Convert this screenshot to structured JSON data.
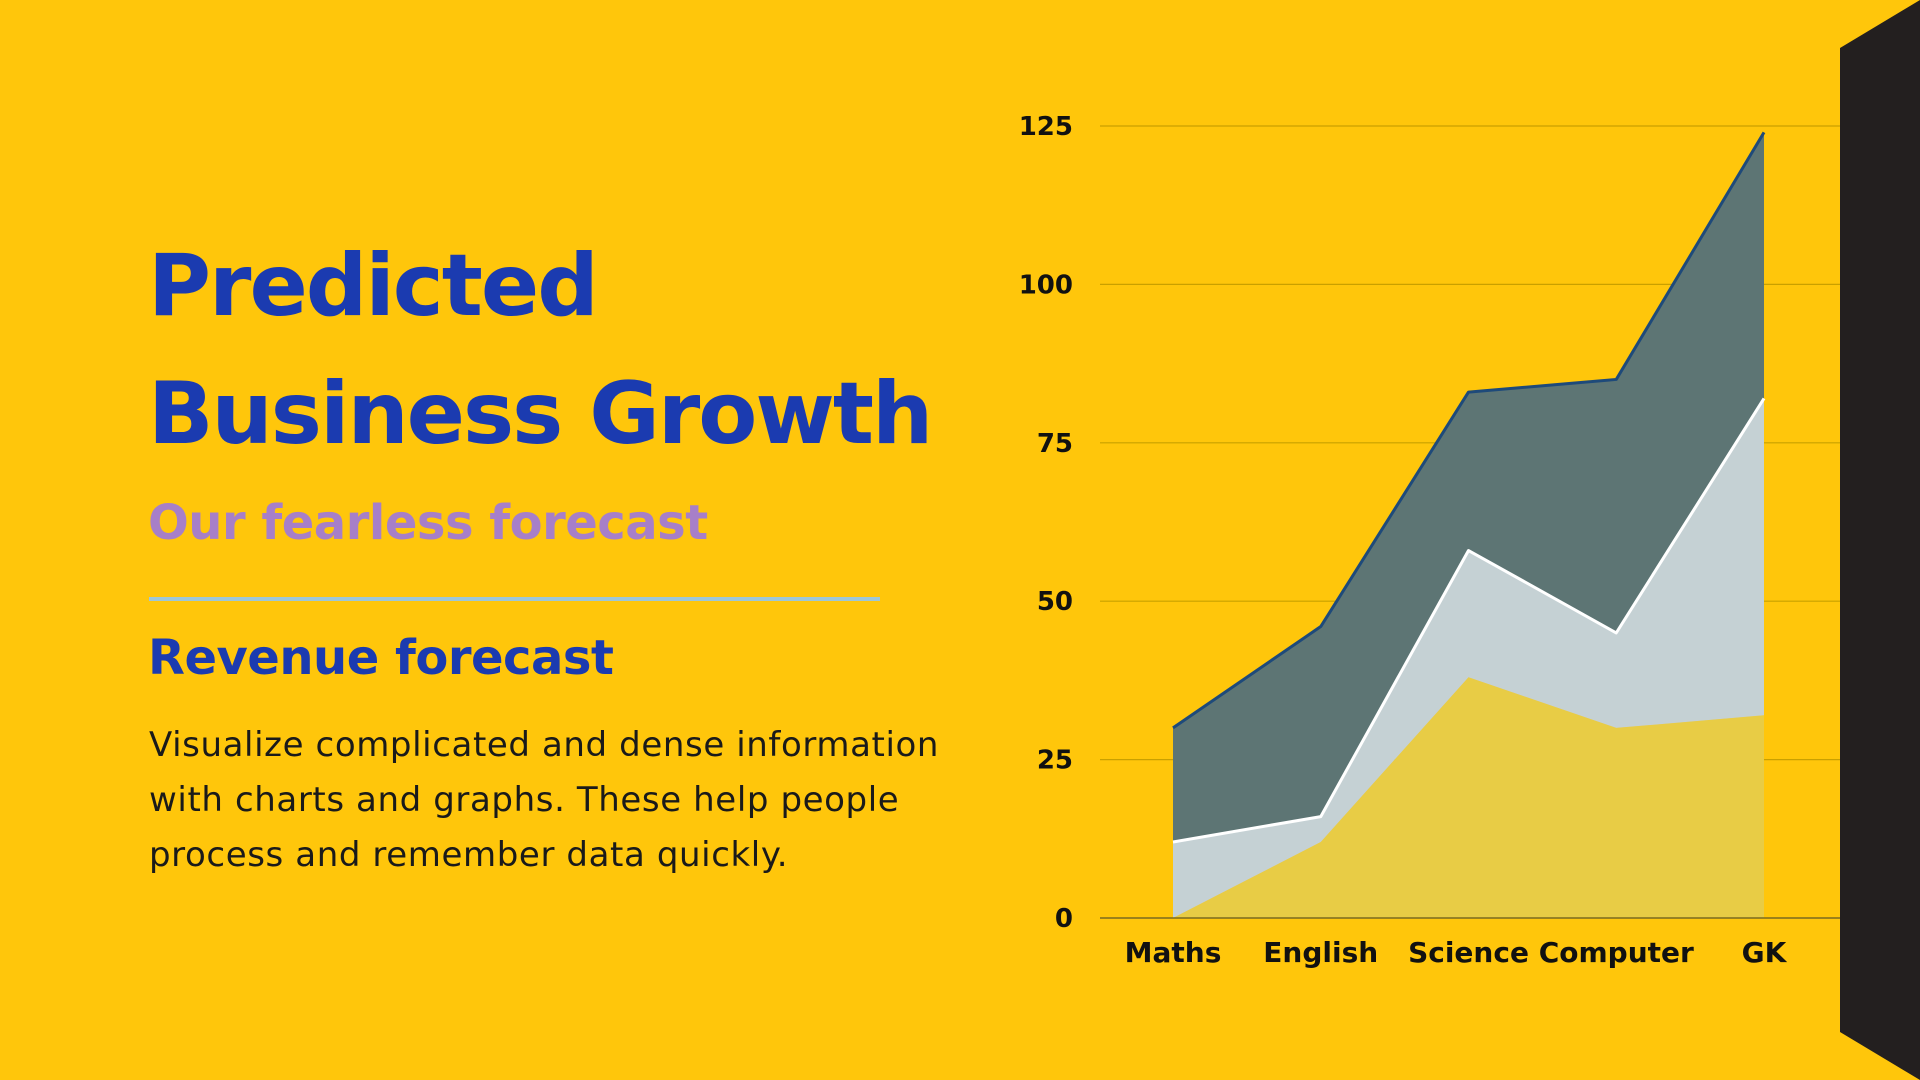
{
  "slide": {
    "title_line1": "Predicted",
    "title_line2": "Business Growth",
    "subtitle": "Our fearless forecast",
    "section_heading": "Revenue forecast",
    "body": "Visualize complicated and dense information with charts and graphs. These help people process and remember data quickly."
  },
  "colors": {
    "background": "#FFC60B",
    "title": "#1B3BB0",
    "subtitle": "#A77FC8",
    "divider": "#9EC7D8",
    "side_bar": "#231F1F"
  },
  "chart_data": {
    "type": "area",
    "stacked": true,
    "categories": [
      "Maths",
      "English",
      "Science",
      "Computer",
      "GK"
    ],
    "series": [
      {
        "values": [
          0,
          12,
          38,
          30,
          32
        ],
        "color": "#E8CC45"
      },
      {
        "values": [
          12,
          4,
          20,
          15,
          50
        ],
        "color": "#C5D1D4"
      },
      {
        "values": [
          18,
          30,
          25,
          40,
          42
        ],
        "color": "#5D7574"
      }
    ],
    "yticks": [
      0,
      25,
      50,
      75,
      100,
      125
    ],
    "ylim": [
      0,
      125
    ],
    "grid": true,
    "legend": "none"
  }
}
